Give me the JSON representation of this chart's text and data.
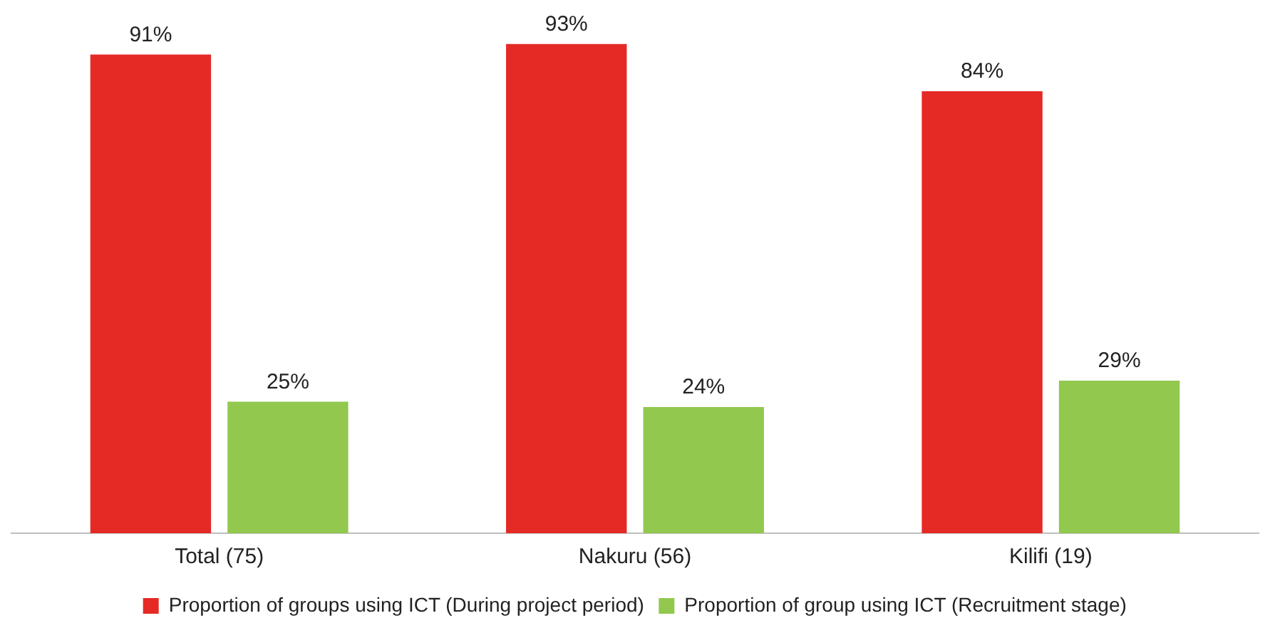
{
  "chart_data": {
    "type": "bar",
    "categories": [
      "Total (75)",
      "Nakuru (56)",
      "Kilifi (19)"
    ],
    "series": [
      {
        "name": "Proportion of groups using ICT (During project period)",
        "color": "#e52a26",
        "values": [
          91,
          93,
          84
        ],
        "value_labels": [
          "91%",
          "93%",
          "84%"
        ]
      },
      {
        "name": "Proportion of group using ICT (Recruitment stage)",
        "color": "#92c84e",
        "values": [
          25,
          24,
          29
        ],
        "value_labels": [
          "25%",
          "24%",
          "29%"
        ]
      }
    ],
    "tick_labels": "x",
    "grid": false,
    "legend": "bottom"
  }
}
